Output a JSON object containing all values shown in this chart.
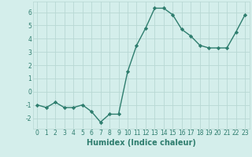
{
  "x": [
    0,
    1,
    2,
    3,
    4,
    5,
    6,
    7,
    8,
    9,
    10,
    11,
    12,
    13,
    14,
    15,
    16,
    17,
    18,
    19,
    20,
    21,
    22,
    23
  ],
  "y": [
    -1.0,
    -1.2,
    -0.8,
    -1.2,
    -1.2,
    -1.0,
    -1.5,
    -2.3,
    -1.7,
    -1.7,
    1.5,
    3.5,
    4.8,
    6.3,
    6.3,
    5.8,
    4.7,
    4.2,
    3.5,
    3.3,
    3.3,
    3.3,
    4.5,
    5.8
  ],
  "line_color": "#2e7d6e",
  "marker": "D",
  "marker_size": 2.2,
  "bg_color": "#d4eeeb",
  "grid_color": "#b8d8d4",
  "xlabel": "Humidex (Indice chaleur)",
  "ylim": [
    -2.8,
    6.8
  ],
  "xlim": [
    -0.5,
    23.5
  ],
  "yticks": [
    -2,
    -1,
    0,
    1,
    2,
    3,
    4,
    5,
    6
  ],
  "xticks": [
    0,
    1,
    2,
    3,
    4,
    5,
    6,
    7,
    8,
    9,
    10,
    11,
    12,
    13,
    14,
    15,
    16,
    17,
    18,
    19,
    20,
    21,
    22,
    23
  ],
  "tick_label_fontsize": 5.5,
  "xlabel_fontsize": 7.0,
  "line_width": 1.0
}
